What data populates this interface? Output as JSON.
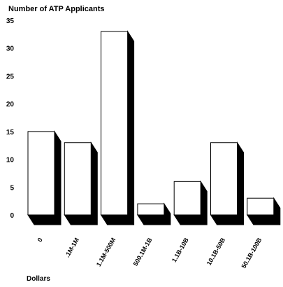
{
  "chart_data": {
    "type": "bar",
    "ylabel": "Number of ATP Applicants",
    "xlabel": "Dollars",
    "categories": [
      "0",
      ".1M-1M",
      "1.1M-500M",
      "500.1M-1B",
      "1.1B-10B",
      "10.1B-50B",
      "50.1B-100B"
    ],
    "values": [
      15,
      13,
      33,
      2,
      6,
      13,
      3
    ],
    "ylim": [
      0,
      35
    ],
    "yticks": [
      "0",
      "5",
      "10",
      "15",
      "20",
      "25",
      "30",
      "35"
    ],
    "grid": false,
    "legend": "none",
    "style": "3d-extruded",
    "bar_face_color": "#ffffff",
    "bar_side_color": "#000000",
    "bar_outline_color": "#000000"
  }
}
